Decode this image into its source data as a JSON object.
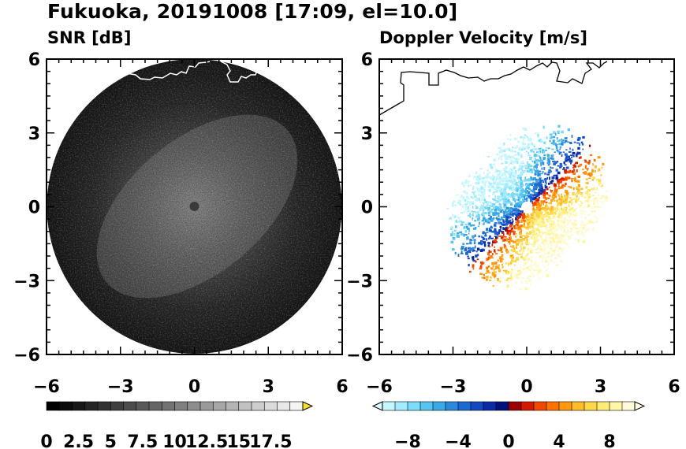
{
  "title": "Fukuoka, 20191008 [17:09, el=10.0]",
  "chart_data": [
    {
      "type": "heatmap",
      "title": "SNR [dB]",
      "xlim": [
        -6,
        6
      ],
      "ylim": [
        -6,
        6
      ],
      "xticks": [
        "−6",
        "−3",
        "0",
        "3",
        "6"
      ],
      "yticks": [
        "6",
        "3",
        "0",
        "−3",
        "−6"
      ],
      "range_radius": 6,
      "colorbar": {
        "levels": [
          0,
          1.25,
          2.5,
          3.75,
          5,
          6.25,
          7.5,
          8.75,
          10,
          11.25,
          12.5,
          13.75,
          15,
          16.25,
          17.5
        ],
        "labels": [
          "0",
          "2.5",
          "5",
          "7.5",
          "10",
          "12.5",
          "15",
          "17.5"
        ],
        "label_values": [
          0,
          2.5,
          5,
          7.5,
          10,
          12.5,
          15,
          17.5
        ],
        "colors": [
          "#000000",
          "#0c0c0c",
          "#181818",
          "#252525",
          "#323232",
          "#3f3f3f",
          "#4c4c4c",
          "#595959",
          "#666666",
          "#737373",
          "#808080",
          "#8d8d8d",
          "#9a9a9a",
          "#a7a7a7",
          "#b4b4b4",
          "#c1c1c1",
          "#cecece",
          "#dbdbdb",
          "#e8e8e8",
          "#f4f4f4"
        ],
        "over_color": "#f5e028"
      }
    },
    {
      "type": "heatmap",
      "title": "Doppler Velocity [m/s]",
      "xlim": [
        -6,
        6
      ],
      "ylim": [
        -6,
        6
      ],
      "xticks": [
        "−6",
        "−3",
        "0",
        "3",
        "6"
      ],
      "yticks": [
        "6",
        "3",
        "0",
        "−3",
        "−6"
      ],
      "colorbar": {
        "labels": [
          "−8",
          "−4",
          "0",
          "4",
          "8"
        ],
        "label_values": [
          -8,
          -4,
          0,
          4,
          8
        ],
        "vmin": -10,
        "vmax": 10,
        "colors": [
          "#c6f7ff",
          "#a3ecff",
          "#7ddcf8",
          "#55c6f0",
          "#3aa9e6",
          "#2a89dc",
          "#1e68d2",
          "#1448c2",
          "#0a2aa8",
          "#02107a",
          "#9a0000",
          "#d21a00",
          "#f04a00",
          "#ff7400",
          "#ff9a10",
          "#ffbc2a",
          "#ffd84a",
          "#ffec78",
          "#fff6a8",
          "#fffbd8"
        ],
        "under_color": "#d8fbff",
        "over_color": "#fffbe4"
      }
    }
  ]
}
